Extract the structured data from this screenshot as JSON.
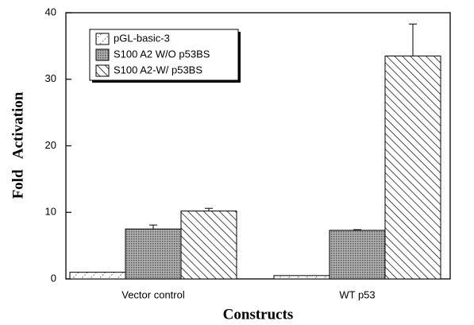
{
  "chart_data": {
    "type": "bar",
    "categories": [
      "Vector control",
      "WT p53"
    ],
    "series": [
      {
        "name": "pGL-basic-3",
        "color": "#ffffff",
        "values": [
          1.0,
          0.5
        ]
      },
      {
        "name": "S100 A2 W/O p53BS",
        "color": "#9a9a9a",
        "values": [
          7.5,
          7.3
        ],
        "errors": [
          0.6,
          0.1
        ]
      },
      {
        "name": "S100 A2-W/ p53BS",
        "color": "#ffffff",
        "values": [
          10.2,
          33.5
        ],
        "errors": [
          0.4,
          4.8
        ]
      }
    ],
    "ylim": [
      0,
      40
    ],
    "yticks": [
      0,
      10,
      20,
      30,
      40
    ],
    "xlabel": "Constructs",
    "ylabel": "Fold   Activation",
    "legend": "upper left"
  }
}
